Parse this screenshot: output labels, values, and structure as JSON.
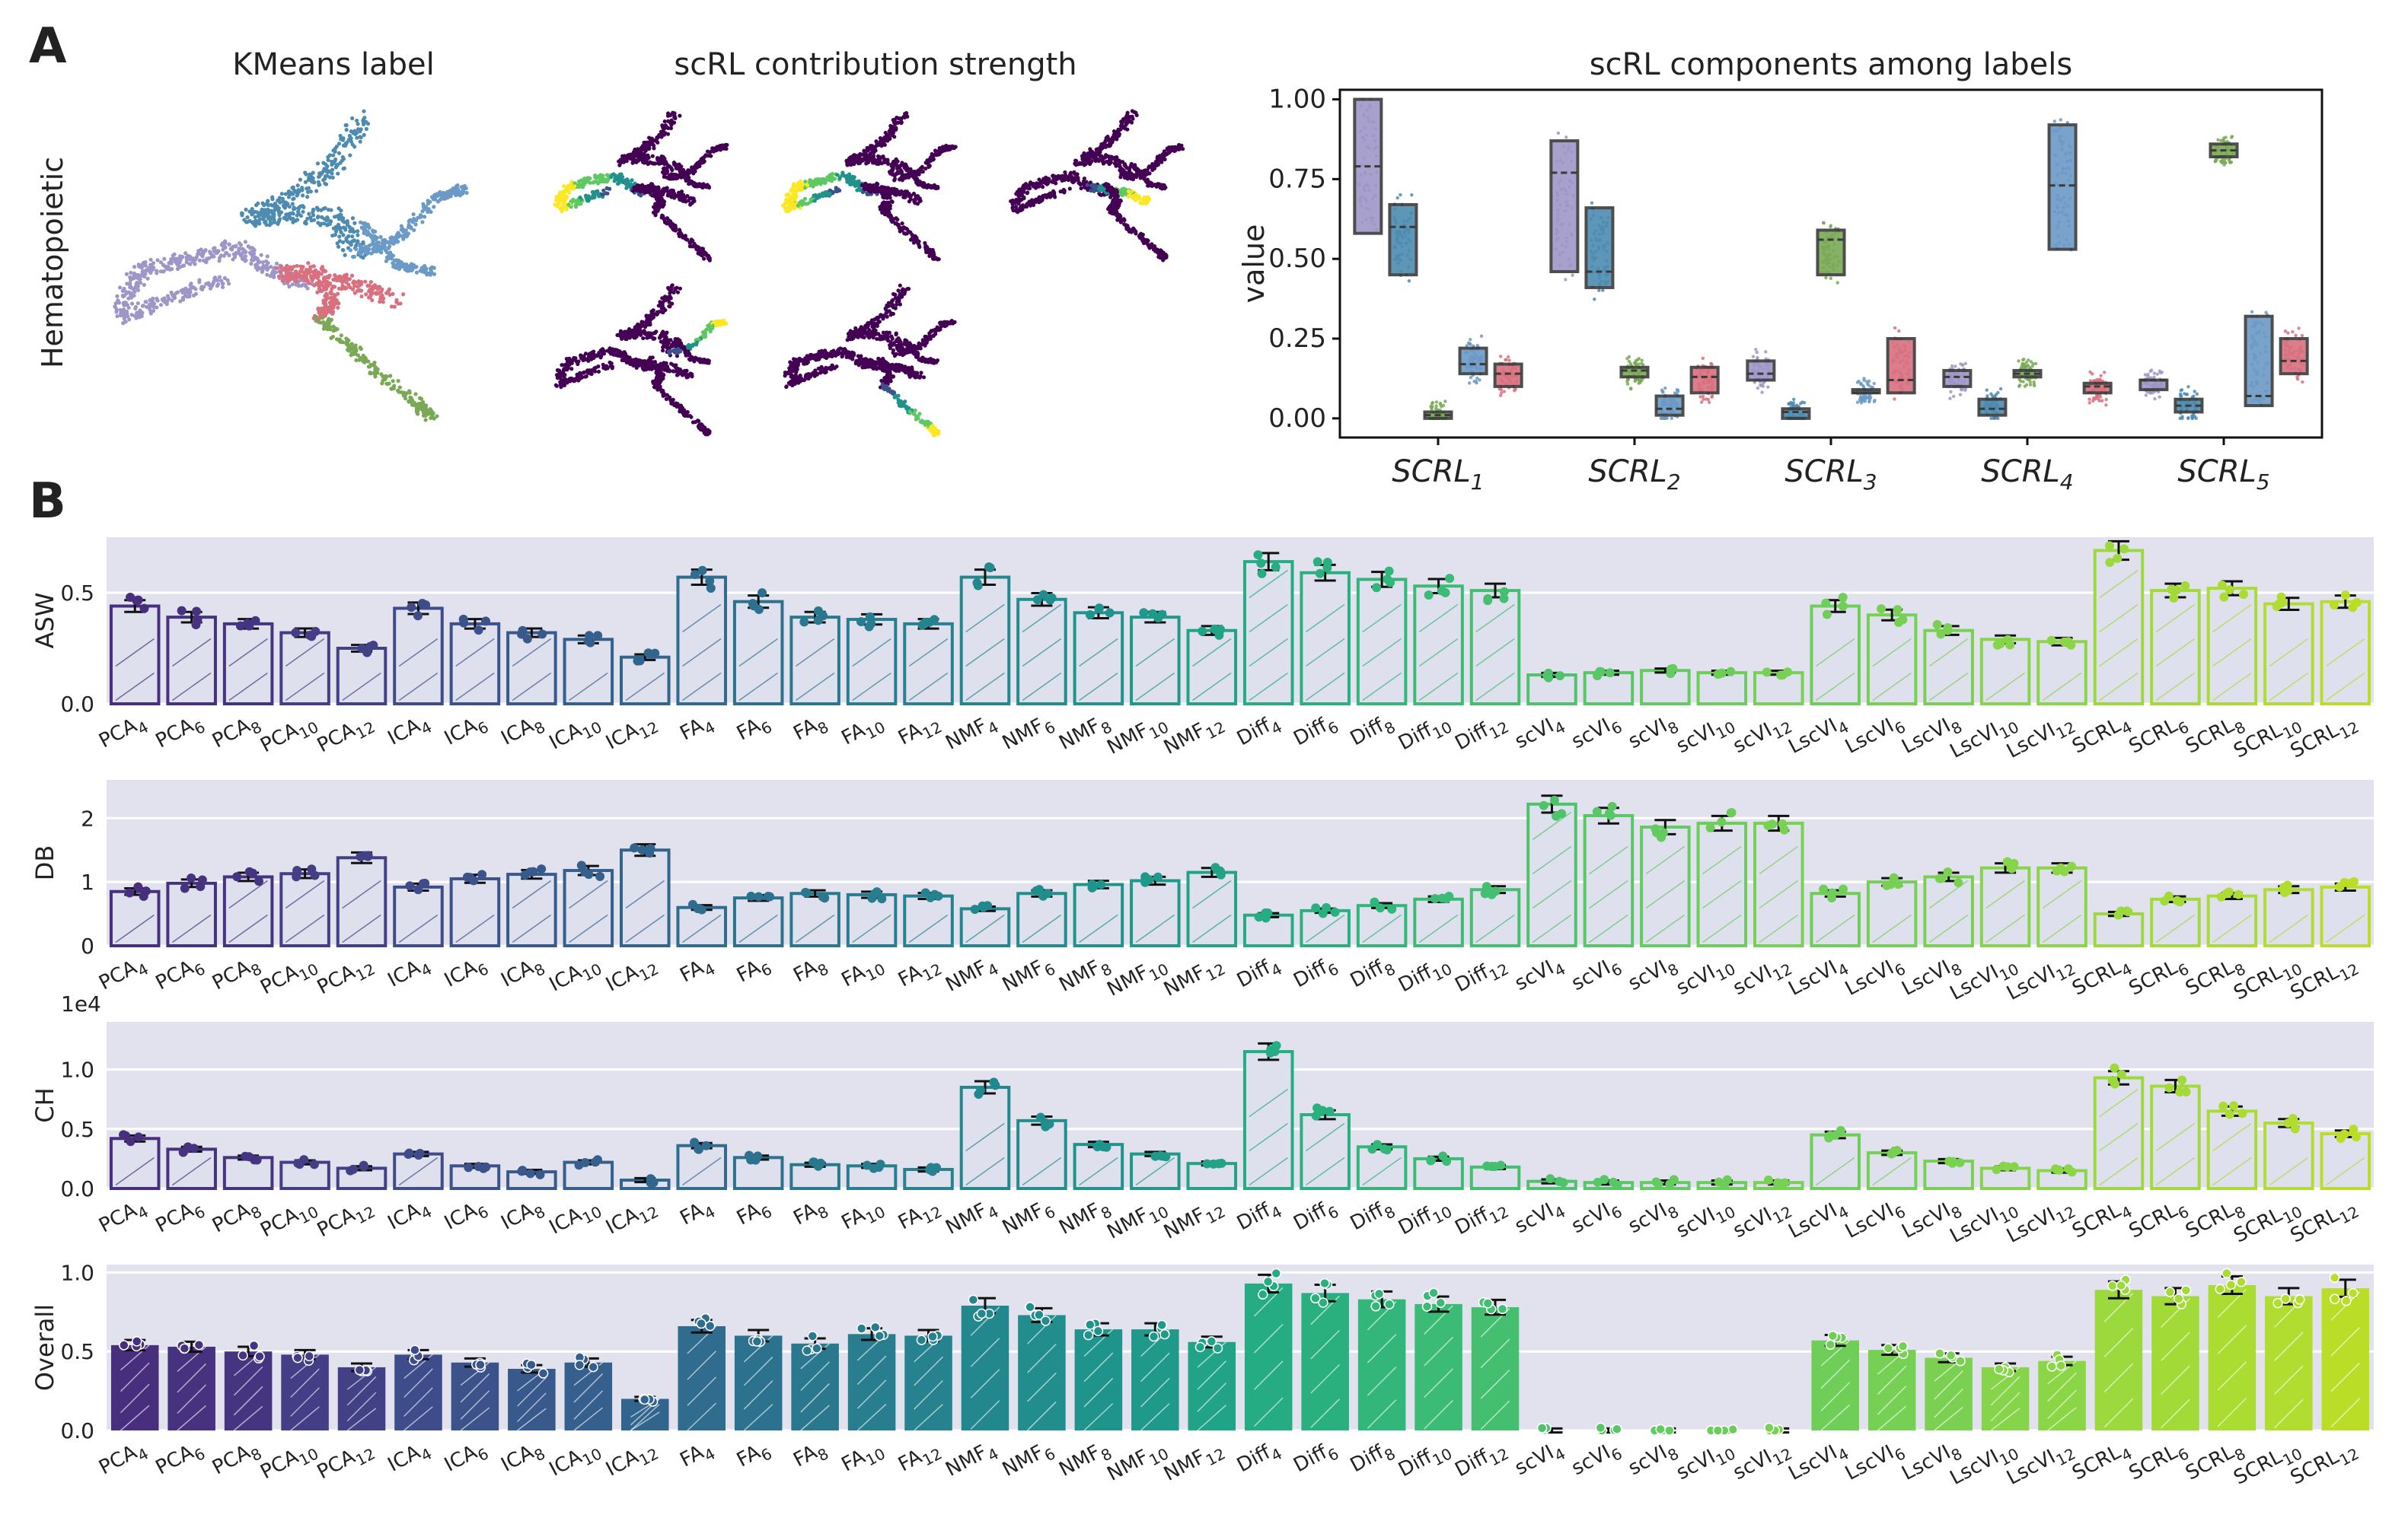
{
  "panel_labels": {
    "a": "A",
    "b": "B"
  },
  "panel_a": {
    "row_label": "Hematopoietic",
    "kmeans_title": "KMeans label",
    "strength_title": "scRL contribution strength",
    "cluster_colors": [
      "#9f96c8",
      "#4d8bb1",
      "#7aa956",
      "#6b9ac6",
      "#d9707f"
    ]
  },
  "chart_data": [
    {
      "type": "box",
      "title": "scRL components among labels",
      "ylabel": "value",
      "ylim": [
        0,
        1
      ],
      "yticks": [
        "0.00",
        "0.25",
        "0.50",
        "0.75",
        "1.00"
      ],
      "categories": [
        "SCRL1",
        "SCRL2",
        "SCRL3",
        "SCRL4",
        "SCRL5"
      ],
      "category_labels": [
        [
          "SCRL",
          "1"
        ],
        [
          "SCRL",
          "2"
        ],
        [
          "SCRL",
          "3"
        ],
        [
          "SCRL",
          "4"
        ],
        [
          "SCRL",
          "5"
        ]
      ],
      "series_colors": [
        "#9f96c8",
        "#4d8bb1",
        "#7aa956",
        "#6b9ac6",
        "#d9707f"
      ],
      "boxes": [
        [
          [
            0.58,
            0.79,
            1.0
          ],
          [
            0.45,
            0.6,
            0.67
          ],
          [
            0.0,
            0.01,
            0.02
          ],
          [
            0.14,
            0.17,
            0.22
          ],
          [
            0.1,
            0.14,
            0.17
          ]
        ],
        [
          [
            0.46,
            0.77,
            0.87
          ],
          [
            0.41,
            0.46,
            0.66
          ],
          [
            0.13,
            0.15,
            0.16
          ],
          [
            0.01,
            0.03,
            0.07
          ],
          [
            0.08,
            0.13,
            0.16
          ]
        ],
        [
          [
            0.12,
            0.14,
            0.18
          ],
          [
            0.0,
            0.02,
            0.03
          ],
          [
            0.45,
            0.56,
            0.59
          ],
          [
            0.08,
            0.08,
            0.09
          ],
          [
            0.08,
            0.12,
            0.25
          ]
        ],
        [
          [
            0.1,
            0.13,
            0.15
          ],
          [
            0.01,
            0.03,
            0.06
          ],
          [
            0.13,
            0.14,
            0.15
          ],
          [
            0.53,
            0.73,
            0.92
          ],
          [
            0.08,
            0.1,
            0.11
          ]
        ],
        [
          [
            0.09,
            0.12,
            0.12
          ],
          [
            0.02,
            0.04,
            0.06
          ],
          [
            0.82,
            0.84,
            0.86
          ],
          [
            0.04,
            0.07,
            0.32
          ],
          [
            0.14,
            0.18,
            0.25
          ]
        ]
      ]
    },
    {
      "type": "bar",
      "ylabel": "ASW",
      "ylim": [
        0,
        0.75
      ],
      "yticks": [
        0.0,
        0.5
      ],
      "ytick_labels": [
        "0.0",
        "0.5"
      ],
      "values": [
        0.44,
        0.39,
        0.36,
        0.32,
        0.25,
        0.43,
        0.36,
        0.32,
        0.29,
        0.21,
        0.57,
        0.46,
        0.39,
        0.38,
        0.36,
        0.57,
        0.47,
        0.41,
        0.39,
        0.33,
        0.64,
        0.59,
        0.56,
        0.53,
        0.51,
        0.13,
        0.14,
        0.15,
        0.14,
        0.14,
        0.44,
        0.4,
        0.33,
        0.29,
        0.28,
        0.69,
        0.51,
        0.52,
        0.45,
        0.46
      ]
    },
    {
      "type": "bar",
      "ylabel": "DB",
      "ylim": [
        0,
        2.6
      ],
      "yticks": [
        0,
        1,
        2
      ],
      "ytick_labels": [
        "0",
        "1",
        "2"
      ],
      "values": [
        0.85,
        0.98,
        1.08,
        1.13,
        1.38,
        0.92,
        1.05,
        1.12,
        1.18,
        1.5,
        0.6,
        0.75,
        0.82,
        0.8,
        0.78,
        0.58,
        0.82,
        0.96,
        1.02,
        1.15,
        0.48,
        0.55,
        0.63,
        0.73,
        0.88,
        2.22,
        2.04,
        1.86,
        1.92,
        1.92,
        0.82,
        1.0,
        1.08,
        1.22,
        1.22,
        0.5,
        0.73,
        0.78,
        0.88,
        0.92
      ]
    },
    {
      "type": "bar",
      "ylabel": "CH",
      "scale_label": "1e4",
      "ylim": [
        0,
        1.4
      ],
      "yticks": [
        0.0,
        0.5,
        1.0
      ],
      "ytick_labels": [
        "0.0",
        "0.5",
        "1.0"
      ],
      "values": [
        0.42,
        0.33,
        0.26,
        0.22,
        0.17,
        0.29,
        0.19,
        0.14,
        0.22,
        0.07,
        0.36,
        0.26,
        0.2,
        0.19,
        0.16,
        0.85,
        0.57,
        0.37,
        0.29,
        0.21,
        1.15,
        0.62,
        0.35,
        0.25,
        0.18,
        0.06,
        0.05,
        0.05,
        0.05,
        0.05,
        0.45,
        0.3,
        0.23,
        0.17,
        0.15,
        0.93,
        0.86,
        0.65,
        0.55,
        0.46
      ]
    },
    {
      "type": "bar",
      "ylabel": "Overall",
      "ylim": [
        0,
        1.05
      ],
      "yticks": [
        0.0,
        0.5,
        1.0
      ],
      "ytick_labels": [
        "0.0",
        "0.5",
        "1.0"
      ],
      "values": [
        0.54,
        0.53,
        0.5,
        0.48,
        0.4,
        0.48,
        0.43,
        0.39,
        0.43,
        0.2,
        0.66,
        0.6,
        0.55,
        0.61,
        0.6,
        0.79,
        0.73,
        0.64,
        0.64,
        0.56,
        0.93,
        0.87,
        0.83,
        0.8,
        0.78,
        0.0,
        0.0,
        0.0,
        0.0,
        0.0,
        0.57,
        0.51,
        0.46,
        0.4,
        0.44,
        0.89,
        0.85,
        0.92,
        0.85,
        0.9
      ],
      "filled": true
    }
  ],
  "methods": [
    [
      "PCA",
      "4"
    ],
    [
      "PCA",
      "6"
    ],
    [
      "PCA",
      "8"
    ],
    [
      "PCA",
      "10"
    ],
    [
      "PCA",
      "12"
    ],
    [
      "ICA",
      "4"
    ],
    [
      "ICA",
      "6"
    ],
    [
      "ICA",
      "8"
    ],
    [
      "ICA",
      "10"
    ],
    [
      "ICA",
      "12"
    ],
    [
      "FA",
      "4"
    ],
    [
      "FA",
      "6"
    ],
    [
      "FA",
      "8"
    ],
    [
      "FA",
      "10"
    ],
    [
      "FA",
      "12"
    ],
    [
      "NMF",
      "4"
    ],
    [
      "NMF",
      "6"
    ],
    [
      "NMF",
      "8"
    ],
    [
      "NMF",
      "10"
    ],
    [
      "NMF",
      "12"
    ],
    [
      "Diff",
      "4"
    ],
    [
      "Diff",
      "6"
    ],
    [
      "Diff",
      "8"
    ],
    [
      "Diff",
      "10"
    ],
    [
      "Diff",
      "12"
    ],
    [
      "scVI",
      "4"
    ],
    [
      "scVI",
      "6"
    ],
    [
      "scVI",
      "8"
    ],
    [
      "scVI",
      "10"
    ],
    [
      "scVI",
      "12"
    ],
    [
      "LscVI",
      "4"
    ],
    [
      "LscVI",
      "6"
    ],
    [
      "LscVI",
      "8"
    ],
    [
      "LscVI",
      "10"
    ],
    [
      "LscVI",
      "12"
    ],
    [
      "SCRL",
      "4"
    ],
    [
      "SCRL",
      "6"
    ],
    [
      "SCRL",
      "8"
    ],
    [
      "SCRL",
      "10"
    ],
    [
      "SCRL",
      "12"
    ]
  ],
  "bar_colors": [
    "#472f7d",
    "#46327e",
    "#453581",
    "#433e85",
    "#424186",
    "#3e4c8a",
    "#3b528b",
    "#38598c",
    "#355f8d",
    "#32658e",
    "#2f6c8e",
    "#2c728e",
    "#2a788e",
    "#287d8e",
    "#26828e",
    "#23888e",
    "#218e8d",
    "#1f948c",
    "#1f998a",
    "#20a386",
    "#25ac82",
    "#2ab07f",
    "#32b67a",
    "#3bbb75",
    "#44bf70",
    "#4ec36b",
    "#58c765",
    "#63cb5f",
    "#6ccd5a",
    "#77d153",
    "#6ece58",
    "#75d054",
    "#7ad151",
    "#85d44a",
    "#8bd646",
    "#9bd93c",
    "#a2da37",
    "#aadc32",
    "#b0dd2f",
    "#bade28"
  ]
}
